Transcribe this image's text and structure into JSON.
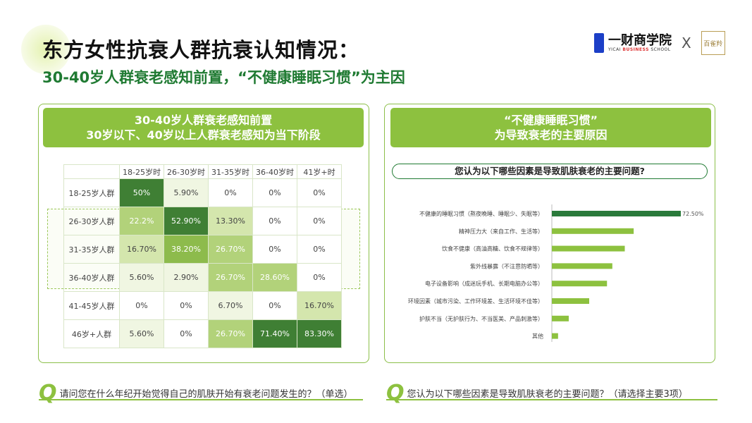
{
  "title": "东方女性抗衰人群抗衰认知情况：",
  "subtitle": "30-40岁人群衰老感知前置，“不健康睡眠习惯”为主因",
  "logo": {
    "name": "一财商学院",
    "en_a": "YICAI ",
    "en_b": "BUSINESS",
    " en_c": " SCHOOL",
    "x": "X",
    "partner": "百雀羚"
  },
  "left_panel": {
    "header1": "30-40岁人群衰老感知前置",
    "header2": "30岁以下、40岁以上人群衰老感知为当下阶段",
    "question": "请问您在什么年纪开始觉得自己的肌肤开始有衰老问题发生的？（单选）"
  },
  "right_panel": {
    "header1": "“不健康睡眠习惯”",
    "header2": "为导致衰老的主要原因",
    "question_box": "您认为以下哪些因素是导致肌肤衰老的主要问题?",
    "question": "您认为以下哪些因素是导致肌肤衰老的主要问题？（请选择主要3项）"
  },
  "q_mark": "Q",
  "chart_data": [
    {
      "type": "heatmap",
      "columns": [
        "18-25岁时",
        "26-30岁时",
        "31-35岁时",
        "36-40岁时",
        "41岁+时"
      ],
      "rows": [
        "18-25岁人群",
        "26-30岁人群",
        "31-35岁人群",
        "36-40岁人群",
        "41-45岁人群",
        "46岁+人群"
      ],
      "labels": [
        [
          "50%",
          "5.90%",
          "0%",
          "0%",
          "0%"
        ],
        [
          "22.2%",
          "52.90%",
          "13.30%",
          "0%",
          "0%"
        ],
        [
          "16.70%",
          "38.20%",
          "26.70%",
          "0%",
          "0%"
        ],
        [
          "5.60%",
          "2.90%",
          "26.70%",
          "28.60%",
          "0%"
        ],
        [
          "0%",
          "0%",
          "6.70%",
          "0%",
          "16.70%"
        ],
        [
          "5.60%",
          "0%",
          "26.70%",
          "71.40%",
          "83.30%"
        ]
      ],
      "values": [
        [
          50,
          5.9,
          0,
          0,
          0
        ],
        [
          22.2,
          52.9,
          13.3,
          0,
          0
        ],
        [
          16.7,
          38.2,
          26.7,
          0,
          0
        ],
        [
          5.6,
          2.9,
          26.7,
          28.6,
          0
        ],
        [
          0,
          0,
          6.7,
          0,
          16.7
        ],
        [
          5.6,
          0,
          26.7,
          71.4,
          83.3
        ]
      ]
    },
    {
      "type": "bar",
      "orientation": "horizontal",
      "categories": [
        "不健康的睡眠习惯（熬夜晚睡、睡眠少、失眠等）",
        "精神压力大（来自工作、生活等）",
        "饮食不健康（高油高糖、饮食不规律等）",
        "紫外线暴露（不注意防晒等）",
        "电子设备影响（成迷玩手机、长期电脑办公等）",
        "环境因素（城市污染、工作环境差、生活环境不佳等）",
        "护肤不当（无护肤行为、不当医美、产品刺激等）",
        "其他"
      ],
      "values": [
        72.5,
        46,
        41,
        34,
        31,
        21,
        9.5,
        3.5
      ],
      "data_labels": [
        "72.50%",
        "",
        "",
        "",
        "",
        "",
        "",
        ""
      ],
      "colors": {
        "top": "#2a7a3b",
        "rest": "#8dc13f"
      }
    }
  ]
}
